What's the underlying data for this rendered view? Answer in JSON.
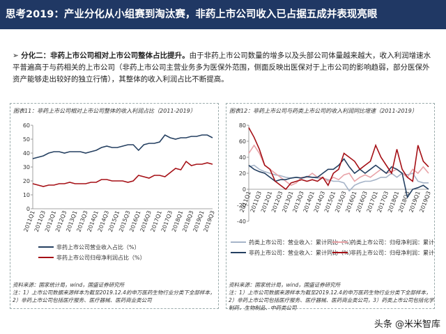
{
  "header": {
    "title": "思考2019：产业分化从小组赛到淘汰赛，非药上市公司收入已占据五成并表现亮眼"
  },
  "body": {
    "lead": "分化二：非药上市公司相对上市公司整体占比提升。",
    "text": "由于非药上市公司数量的增多以及头部公司体量越来越大，收入利润增速水平普遍高于与药相关的上市公司（非药上市公司主营业务多为医保外范围，侧面反映出医保对于上市公司的影响趋弱，部分医保外资产能够走出较好的独立行情），其整体的收入利润占比不断提高。"
  },
  "chart_data": [
    {
      "type": "line",
      "title": "图表11：非药上市公司相对上市公司整体的收入利润占比（2011-2019）",
      "categories": [
        "2011Q1",
        null,
        "2011Q3",
        null,
        "2012Q1",
        null,
        "2012Q3",
        null,
        "2013Q1",
        null,
        "2013Q3",
        null,
        "2014Q1",
        null,
        "2014Q3",
        null,
        "2015Q1",
        null,
        "2015Q3",
        null,
        "2016Q1",
        null,
        "2016Q3",
        null,
        "2017Q1",
        null,
        "2017Q3",
        null,
        "2018Q1",
        null,
        "2018Q3",
        null,
        "2019Q1",
        null,
        "2019Q3"
      ],
      "series": [
        {
          "name": "非药上市公司营业收入占比（%）",
          "color": "#243f60",
          "values": [
            36,
            37,
            38,
            40,
            41,
            41,
            40,
            41,
            41,
            41,
            40,
            41,
            42,
            44,
            45,
            44,
            44,
            45,
            46,
            46,
            42,
            46,
            47,
            47,
            48,
            53,
            51,
            50,
            51,
            51,
            52,
            52,
            53,
            53,
            51
          ]
        },
        {
          "name": "非药上市公司归母净利润占比（%）",
          "color": "#a50f15",
          "values": [
            18,
            17,
            16,
            17,
            17,
            18,
            18,
            19,
            18,
            18,
            18,
            19,
            19,
            21,
            21,
            20,
            20,
            20,
            19,
            20,
            24,
            23,
            22,
            24,
            24,
            23,
            26,
            29,
            28,
            34,
            31,
            32,
            32,
            33,
            32
          ]
        }
      ],
      "ylim": [
        0,
        60
      ],
      "yticks": [
        0,
        10,
        20,
        30,
        40,
        50,
        60
      ],
      "grid": false,
      "source": "资料来源：国家统计局，wind，国盛证券研究所",
      "note": "注：1）上市公司数据来源样本为截至2019.12.4的申万医药生物行业分类下全部样本，2）非药上市公司包括医疗服务、医疗器械、医药商业类公司"
    },
    {
      "type": "line",
      "title": "图表12：非药上市公司与药类上市公司的收入利润同比增速（2011-2019）",
      "categories": [
        "2011Q1",
        null,
        "2011Q3",
        null,
        "2012Q1",
        null,
        "2012Q3",
        null,
        "2013Q1",
        null,
        "2013Q3",
        null,
        "2014Q1",
        null,
        "2014Q3",
        null,
        "2015Q1",
        null,
        "2015Q3",
        null,
        "2016Q1",
        null,
        "2016Q3",
        null,
        "2017Q1",
        null,
        "2017Q3",
        null,
        "2018Q1",
        null,
        "2018Q3",
        null,
        "2019Q1",
        null,
        "2019Q3"
      ],
      "series": [
        {
          "name": "药类上市公司：营业收入：累计同比（%）",
          "color": "#a6b4c8",
          "values": [
            28,
            30,
            25,
            22,
            20,
            18,
            17,
            15,
            14,
            15,
            14,
            15,
            15,
            14,
            14,
            12,
            10,
            10,
            8,
            -2,
            5,
            8,
            10,
            10,
            12,
            15,
            15,
            20,
            15,
            20,
            18,
            20,
            10,
            8,
            8
          ]
        },
        {
          "name": "药类上市公司：归母净利润：累计同比（%）",
          "color": "#e8a3a8",
          "values": [
            45,
            55,
            45,
            30,
            25,
            20,
            15,
            10,
            5,
            8,
            15,
            15,
            20,
            15,
            15,
            10,
            15,
            12,
            18,
            20,
            10,
            15,
            18,
            15,
            20,
            25,
            20,
            22,
            25,
            20,
            15,
            25,
            20,
            28,
            20
          ]
        },
        {
          "name": "非药上市公司：营业收入：累计同比（%）",
          "color": "#243f60",
          "values": [
            30,
            25,
            22,
            20,
            15,
            10,
            12,
            12,
            14,
            15,
            14,
            16,
            15,
            15,
            20,
            25,
            25,
            30,
            38,
            28,
            20,
            25,
            20,
            25,
            30,
            25,
            20,
            28,
            25,
            20,
            -10,
            0,
            2,
            5,
            0
          ]
        },
        {
          "name": "非药上市公司：归母净利润：累计同比（%）",
          "color": "#a50f15",
          "values": [
            77,
            65,
            50,
            30,
            25,
            10,
            5,
            0,
            8,
            10,
            12,
            10,
            12,
            10,
            15,
            5,
            20,
            25,
            45,
            40,
            35,
            25,
            30,
            35,
            55,
            40,
            30,
            20,
            50,
            25,
            15,
            10,
            55,
            35,
            28
          ]
        }
      ],
      "ylim": [
        -40,
        80
      ],
      "yticks": [
        -40,
        -20,
        0,
        20,
        40,
        60,
        80
      ],
      "grid": false,
      "source": "资料来源：国家统计局，wind，国盛证券研究所",
      "note": "注：1）上市公司数据来源样本为截至2019.12.4的申万医药生物行业分类下全部样本，2）非药上市公司包括医疗服务、医疗器械、医药商业类公司，3）药类上市公司包括化学制药、生物制品、中药类公司"
    }
  ],
  "watermark": "头条 @米米智库"
}
